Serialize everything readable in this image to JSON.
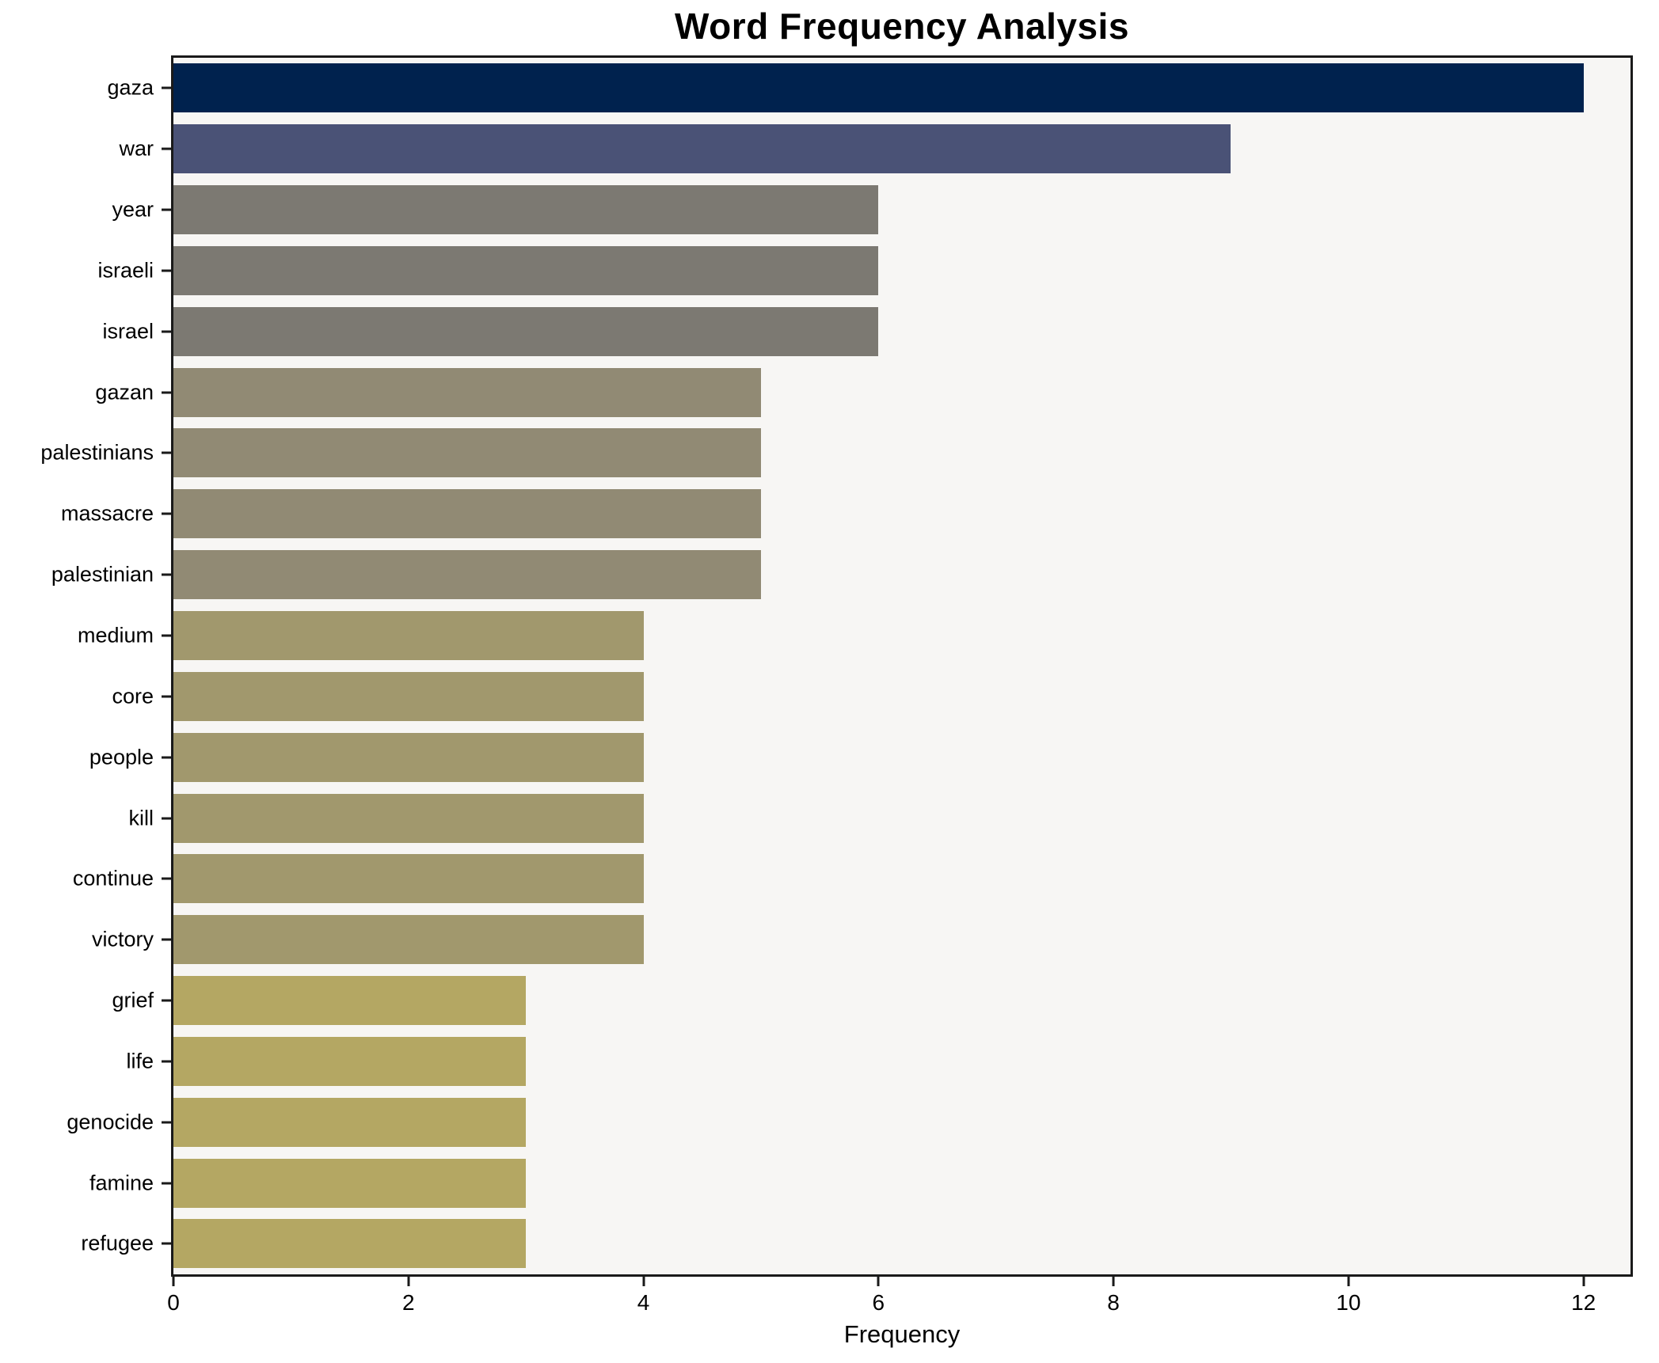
{
  "title": "Word Frequency Analysis",
  "xlabel": "Frequency",
  "chart_data": {
    "type": "bar",
    "orientation": "horizontal",
    "title": "Word Frequency Analysis",
    "xlabel": "Frequency",
    "ylabel": "",
    "categories": [
      "gaza",
      "war",
      "year",
      "israeli",
      "israel",
      "gazan",
      "palestinians",
      "massacre",
      "palestinian",
      "medium",
      "core",
      "people",
      "kill",
      "continue",
      "victory",
      "grief",
      "life",
      "genocide",
      "famine",
      "refugee"
    ],
    "values": [
      12,
      9,
      6,
      6,
      6,
      5,
      5,
      5,
      5,
      4,
      4,
      4,
      4,
      4,
      4,
      3,
      3,
      3,
      3,
      3
    ],
    "bar_colors": [
      "#00224e",
      "#4a5276",
      "#7c7972",
      "#7c7972",
      "#7c7972",
      "#918a74",
      "#918a74",
      "#918a74",
      "#918a74",
      "#a1986d",
      "#a1986d",
      "#a1986d",
      "#a1986d",
      "#a1986d",
      "#a1986d",
      "#b4a763",
      "#b4a763",
      "#b4a763",
      "#b4a763",
      "#b4a763"
    ],
    "x_ticks": [
      0,
      2,
      4,
      6,
      8,
      10,
      12
    ],
    "xlim": [
      0,
      12.4
    ],
    "grid": false,
    "legend": false,
    "plot_bg": "#f7f6f4",
    "figure_bg": "#ffffff",
    "spine_color": "#1a1a1a"
  }
}
